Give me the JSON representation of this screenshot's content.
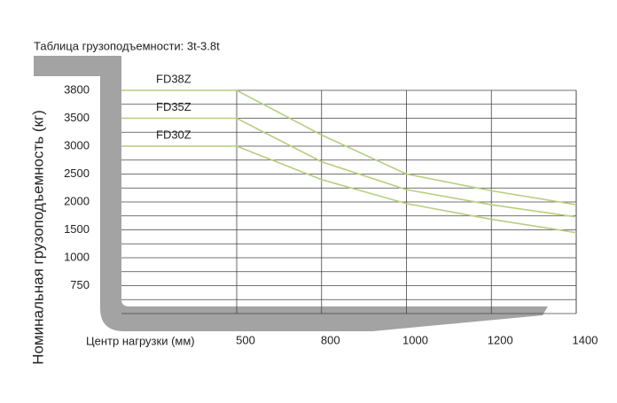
{
  "chart_data": {
    "type": "line",
    "title": "Таблица грузоподъемности: 3t-3.8t",
    "x_label": "Центр нагрузки (мм)",
    "y_label": "Номинальная грузоподъемность (кг)",
    "x": [
      0,
      500,
      800,
      1000,
      1200,
      1400
    ],
    "xlim": [
      0,
      1400
    ],
    "xticks": [
      500,
      800,
      1000,
      1200,
      1400
    ],
    "ylim": [
      500,
      3800
    ],
    "yticks": [
      750,
      1000,
      1500,
      2000,
      2500,
      3000,
      3500,
      3800
    ],
    "grid": true,
    "series": [
      {
        "name": "FD38Z",
        "color": "#b6cf7e",
        "values": [
          3800,
          3800,
          3200,
          2500,
          2200,
          1950
        ]
      },
      {
        "name": "FD35Z",
        "color": "#b6cf7e",
        "values": [
          3500,
          3500,
          2720,
          2220,
          1950,
          1730
        ]
      },
      {
        "name": "FD30Z",
        "color": "#b6cf7e",
        "values": [
          3000,
          3000,
          2400,
          1970,
          1690,
          1450
        ]
      }
    ]
  }
}
